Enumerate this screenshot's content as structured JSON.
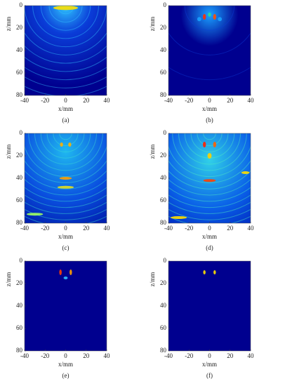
{
  "chart_data": [
    {
      "type": "image",
      "caption": "(a)",
      "xlabel": "x/mm",
      "ylabel": "z/mm",
      "xlim": [
        -40,
        40
      ],
      "ylim": [
        0,
        80
      ],
      "y_inverted": true,
      "xticks": [
        -40,
        -20,
        0,
        20,
        40
      ],
      "yticks": [
        0,
        20,
        40,
        60,
        80
      ]
    },
    {
      "type": "image",
      "caption": "(b)",
      "xlabel": "x/mm",
      "ylabel": "z/mm",
      "xlim": [
        -40,
        40
      ],
      "ylim": [
        0,
        80
      ],
      "y_inverted": true,
      "xticks": [
        -40,
        -20,
        0,
        20,
        40
      ],
      "yticks": [
        0,
        20,
        40,
        60,
        80
      ]
    },
    {
      "type": "image",
      "caption": "(c)",
      "xlabel": "x/mm",
      "ylabel": "z/mm",
      "xlim": [
        -40,
        40
      ],
      "ylim": [
        0,
        80
      ],
      "y_inverted": true,
      "xticks": [
        -40,
        -20,
        0,
        20,
        40
      ],
      "yticks": [
        0,
        20,
        40,
        60,
        80
      ]
    },
    {
      "type": "image",
      "caption": "(d)",
      "xlabel": "x/mm",
      "ylabel": "z/mm",
      "xlim": [
        -40,
        40
      ],
      "ylim": [
        0,
        80
      ],
      "y_inverted": true,
      "xticks": [
        -40,
        -20,
        0,
        20,
        40
      ],
      "yticks": [
        0,
        20,
        40,
        60,
        80
      ]
    },
    {
      "type": "image",
      "caption": "(e)",
      "xlabel": "x/mm",
      "ylabel": "z/mm",
      "xlim": [
        -40,
        40
      ],
      "ylim": [
        0,
        80
      ],
      "y_inverted": true,
      "xticks": [
        -40,
        -20,
        0,
        20,
        40
      ],
      "yticks": [
        0,
        20,
        40,
        60,
        80
      ]
    },
    {
      "type": "image",
      "caption": "(f)",
      "xlabel": "x/mm",
      "ylabel": "z/mm",
      "xlim": [
        -40,
        40
      ],
      "ylim": [
        0,
        80
      ],
      "y_inverted": true,
      "xticks": [
        -40,
        -20,
        0,
        20,
        40
      ],
      "yticks": [
        0,
        20,
        40,
        60,
        80
      ]
    }
  ]
}
